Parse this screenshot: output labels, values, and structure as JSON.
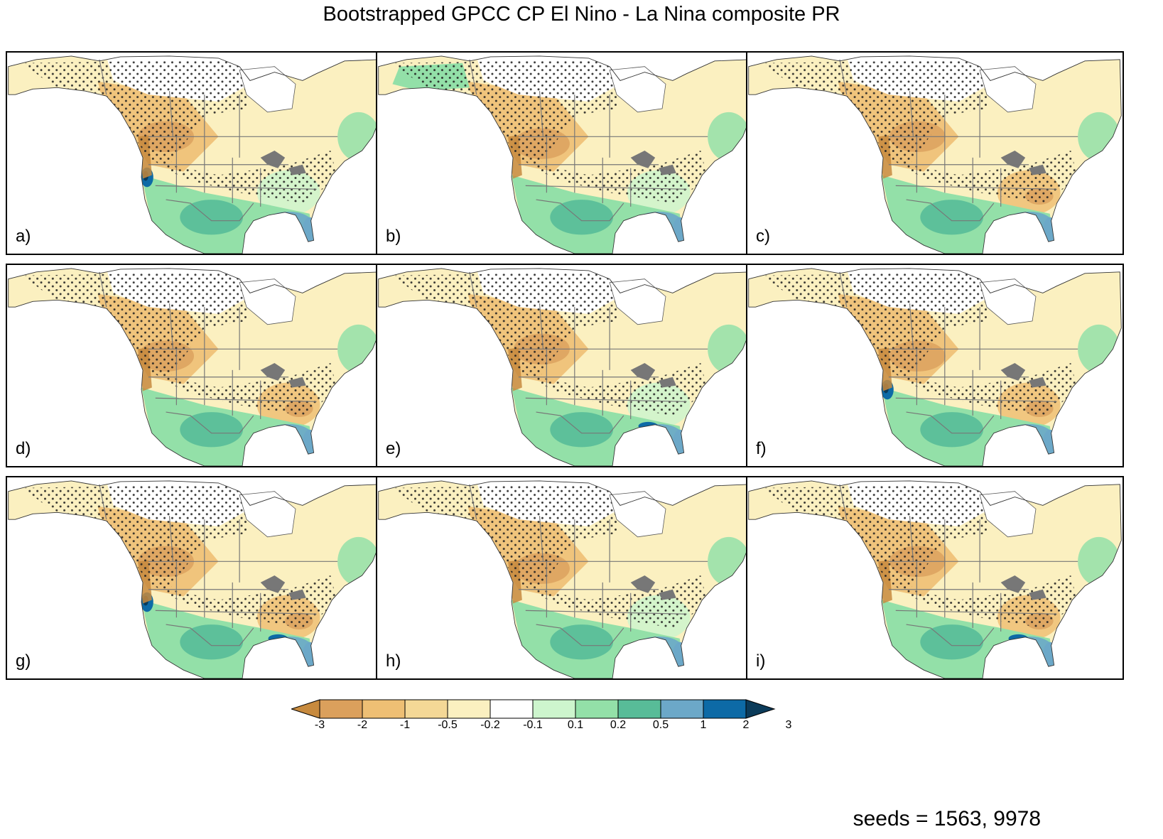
{
  "title": "Bootstrapped GPCC CP El Nino - La Nina composite PR",
  "panels": [
    {
      "label": "a)"
    },
    {
      "label": "b)"
    },
    {
      "label": "c)"
    },
    {
      "label": "d)"
    },
    {
      "label": "e)"
    },
    {
      "label": "f)"
    },
    {
      "label": "g)"
    },
    {
      "label": "h)"
    },
    {
      "label": "i)"
    }
  ],
  "colorbar": {
    "ticks": [
      "-3",
      "-2",
      "-1",
      "-0.5",
      "-0.2",
      "-0.1",
      "0.1",
      "0.2",
      "0.5",
      "1",
      "2",
      "3"
    ],
    "colors": [
      "#c78a3e",
      "#dba05c",
      "#eebf74",
      "#f4d896",
      "#fbf0c0",
      "#ffffff",
      "#cdf5cd",
      "#93e0a8",
      "#58bc98",
      "#6ca8c8",
      "#0d6aa6",
      "#0b3b5a"
    ]
  },
  "footer": {
    "seeds": "seeds = 1563, 9978"
  }
}
